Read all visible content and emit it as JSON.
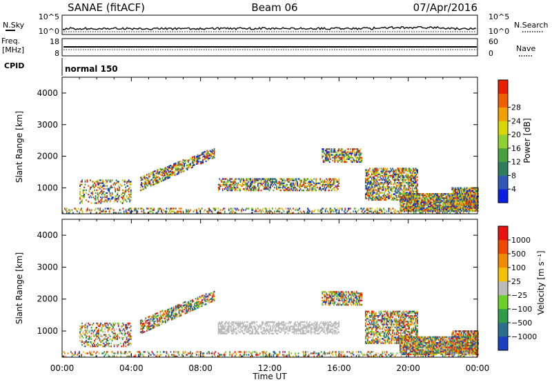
{
  "header": {
    "station": "SANAE (fitACF)",
    "beam": "Beam 06",
    "date": "07/Apr/2016"
  },
  "small_panels": {
    "nsky": {
      "label": "N.Sky",
      "ticks": [
        "10^5",
        "10^0"
      ]
    },
    "nsearch": {
      "label": "N.Search",
      "ticks": [
        "10^5",
        "10^0"
      ]
    },
    "freq": {
      "label_line1": "Freq.",
      "label_line2": "[MHz]",
      "ticks": [
        "18",
        "8"
      ]
    },
    "nave": {
      "label": "Nave",
      "ticks": [
        "60",
        "0"
      ]
    },
    "cpid": {
      "label": "CPID",
      "value": "normal 150"
    }
  },
  "chart_data": [
    {
      "type": "heatmap",
      "name": "power",
      "xlabel": "",
      "ylabel": "Slant Range [km]",
      "xlim": [
        0,
        24
      ],
      "ylim": [
        180,
        4500
      ],
      "yticks": [
        "1000",
        "2000",
        "3000",
        "4000"
      ],
      "xticks": [
        "00:00",
        "04:00",
        "08:00",
        "12:00",
        "16:00",
        "20:00",
        "00:00"
      ],
      "colorbar": {
        "label": "Power [dB]",
        "ticks": [
          "4",
          "8",
          "12",
          "16",
          "20",
          "24",
          "28"
        ],
        "colors": [
          "#0a1fe0",
          "#2f58b8",
          "#2e7d5c",
          "#4aa040",
          "#8fd030",
          "#d8d800",
          "#f0a000",
          "#f06000",
          "#e82000"
        ]
      },
      "regions": [
        {
          "t": [
            0.0,
            24.0
          ],
          "r": [
            190,
            330
          ],
          "level": 0.3
        },
        {
          "t": [
            1.0,
            4.0
          ],
          "r": [
            500,
            1250
          ],
          "level": 0.35
        },
        {
          "t": [
            4.5,
            8.8
          ],
          "r_start": [
            900,
            1350
          ],
          "r_end": [
            1950,
            2250
          ],
          "level": 0.6
        },
        {
          "t": [
            9.0,
            16.0
          ],
          "r": [
            900,
            1300
          ],
          "level": 0.55
        },
        {
          "t": [
            15.0,
            17.3
          ],
          "r": [
            1800,
            2250
          ],
          "level": 0.6
        },
        {
          "t": [
            17.5,
            20.5
          ],
          "r": [
            600,
            1600
          ],
          "level": 0.6
        },
        {
          "t": [
            19.5,
            24.0
          ],
          "r": [
            250,
            800
          ],
          "level": 0.85
        },
        {
          "t": [
            22.5,
            24.0
          ],
          "r": [
            300,
            1000
          ],
          "level": 0.8
        }
      ]
    },
    {
      "type": "heatmap",
      "name": "velocity",
      "xlabel": "Time UT",
      "ylabel": "Slant Range [km]",
      "xlim": [
        0,
        24
      ],
      "ylim": [
        180,
        4500
      ],
      "yticks": [
        "1000",
        "2000",
        "3000",
        "4000"
      ],
      "xticks": [
        "00:00",
        "04:00",
        "08:00",
        "12:00",
        "16:00",
        "20:00",
        "00:00"
      ],
      "colorbar": {
        "label": "Velocity [m s⁻¹]",
        "ticks": [
          "1000",
          "500",
          "100",
          "25",
          "−25",
          "−100",
          "−500",
          "−1000"
        ],
        "colors": [
          "#1a3fc0",
          "#2d6e8c",
          "#2e9a4a",
          "#6ccf2a",
          "#bbbbbb",
          "#f2c200",
          "#f08a00",
          "#f04a00",
          "#e81010"
        ]
      },
      "regions": [
        {
          "t": [
            0.0,
            24.0
          ],
          "r": [
            190,
            330
          ],
          "level": 0.3
        },
        {
          "t": [
            1.0,
            4.0
          ],
          "r": [
            500,
            1250
          ],
          "level": 0.35
        },
        {
          "t": [
            4.5,
            8.8
          ],
          "r_start": [
            900,
            1350
          ],
          "r_end": [
            1950,
            2250
          ],
          "level": 0.6
        },
        {
          "t": [
            9.0,
            16.0
          ],
          "r": [
            900,
            1300
          ],
          "level": 0.55
        },
        {
          "t": [
            15.0,
            17.3
          ],
          "r": [
            1800,
            2250
          ],
          "level": 0.6
        },
        {
          "t": [
            17.5,
            20.5
          ],
          "r": [
            600,
            1600
          ],
          "level": 0.6
        },
        {
          "t": [
            19.5,
            24.0
          ],
          "r": [
            250,
            800
          ],
          "level": 0.85
        },
        {
          "t": [
            22.5,
            24.0
          ],
          "r": [
            300,
            1000
          ],
          "level": 0.8
        }
      ]
    }
  ]
}
